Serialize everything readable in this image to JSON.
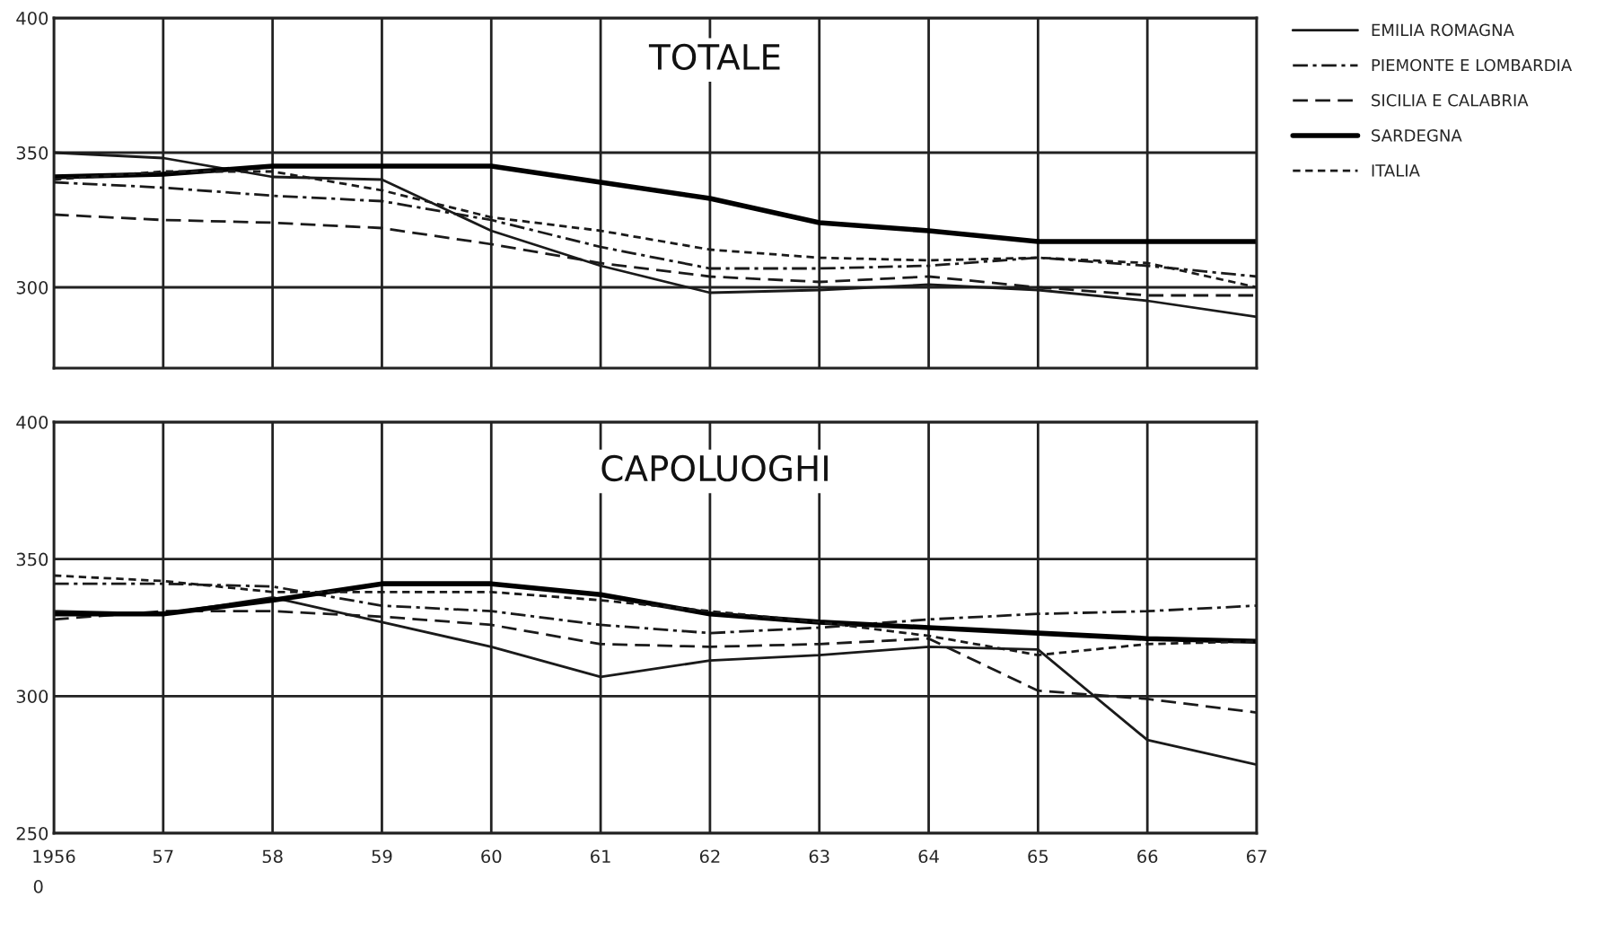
{
  "chart_data": [
    {
      "type": "line",
      "title": "TOTALE",
      "categories": [
        "1956",
        "57",
        "58",
        "59",
        "60",
        "61",
        "62",
        "63",
        "64",
        "65",
        "66",
        "67"
      ],
      "ylim": [
        270,
        400
      ],
      "yticks": [
        300,
        350,
        400
      ],
      "tick_labels": "y",
      "grid": true,
      "legend": "right",
      "series": [
        {
          "name": "EMILIA ROMAGNA",
          "color": "#1a1a1a",
          "line_style": "solid",
          "values": [
            350,
            348,
            341,
            340,
            321,
            308,
            298,
            299,
            301,
            299,
            295,
            289
          ]
        },
        {
          "name": "PIEMONTE E LOMBARDIA",
          "color": "#1a1a1a",
          "line_style": "dashdot",
          "values": [
            339,
            337,
            334,
            332,
            325,
            315,
            307,
            307,
            308,
            311,
            308,
            304
          ]
        },
        {
          "name": "SICILIA E CALABRIA",
          "color": "#1a1a1a",
          "line_style": "dashed",
          "values": [
            327,
            325,
            324,
            322,
            316,
            309,
            304,
            302,
            304,
            300,
            297,
            297
          ]
        },
        {
          "name": "SARDEGNA",
          "color": "#000000",
          "line_style": "solid",
          "values": [
            341,
            342,
            345,
            345,
            345,
            339,
            333,
            324,
            321,
            317,
            317,
            317
          ]
        },
        {
          "name": "ITALIA",
          "color": "#1a1a1a",
          "line_style": "dotted",
          "values": [
            340,
            343,
            343,
            336,
            326,
            321,
            314,
            311,
            310,
            311,
            309,
            300
          ]
        }
      ]
    },
    {
      "type": "line",
      "title": "CAPOLUOGHI",
      "categories": [
        "1956",
        "57",
        "58",
        "59",
        "60",
        "61",
        "62",
        "63",
        "64",
        "65",
        "66",
        "67"
      ],
      "ylim": [
        250,
        400
      ],
      "yticks": [
        250,
        300,
        350,
        400
      ],
      "annotations": [
        "0"
      ],
      "grid": true,
      "series": [
        {
          "color": "#1a1a1a",
          "line_style": "solid",
          "values": [
            331,
            330,
            336,
            327,
            318,
            307,
            313,
            315,
            318,
            317,
            284,
            275
          ]
        },
        {
          "color": "#1a1a1a",
          "line_style": "dashdot",
          "values": [
            341,
            341,
            340,
            333,
            331,
            326,
            323,
            325,
            328,
            330,
            331,
            333
          ]
        },
        {
          "color": "#1a1a1a",
          "line_style": "dashed",
          "values": [
            328,
            331,
            331,
            329,
            326,
            319,
            318,
            319,
            321,
            302,
            299,
            294
          ]
        },
        {
          "color": "#000000",
          "line_style": "solid",
          "values": [
            330,
            330,
            335,
            341,
            341,
            337,
            330,
            327,
            325,
            323,
            321,
            320
          ]
        },
        {
          "color": "#1a1a1a",
          "line_style": "dotted",
          "values": [
            344,
            342,
            338,
            338,
            338,
            335,
            331,
            327,
            322,
            315,
            319,
            320
          ]
        }
      ]
    }
  ]
}
